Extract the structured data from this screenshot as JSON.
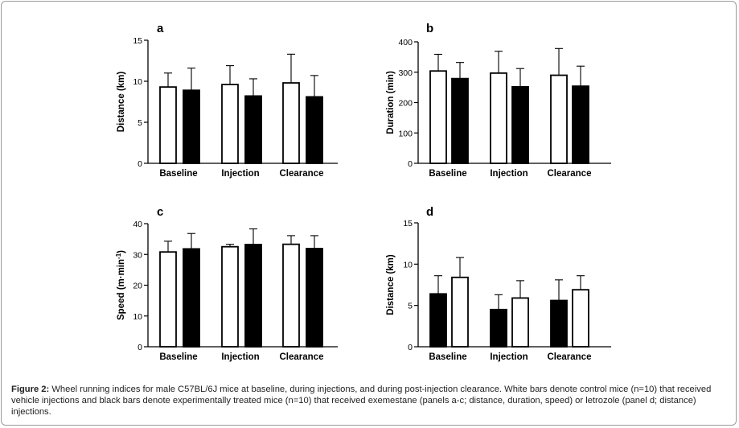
{
  "chart_data": [
    {
      "panel": "a",
      "type": "bar",
      "categories": [
        "Baseline",
        "Injection",
        "Clearance"
      ],
      "ylabel": "Distance (km)",
      "ylim": [
        0,
        15
      ],
      "yticks": [
        0,
        5,
        10,
        15
      ],
      "series": [
        {
          "fill": "white",
          "values": [
            9.3,
            9.6,
            9.8
          ],
          "errors": [
            1.7,
            2.3,
            3.5
          ]
        },
        {
          "fill": "black",
          "values": [
            8.9,
            8.2,
            8.1
          ],
          "errors": [
            2.7,
            2.1,
            2.6
          ]
        }
      ]
    },
    {
      "panel": "b",
      "type": "bar",
      "categories": [
        "Baseline",
        "Injection",
        "Clearance"
      ],
      "ylabel": "Duration (min)",
      "ylim": [
        0,
        400
      ],
      "yticks": [
        0,
        100,
        200,
        300,
        400
      ],
      "series": [
        {
          "fill": "white",
          "values": [
            304,
            297,
            290
          ],
          "errors": [
            55,
            72,
            88
          ]
        },
        {
          "fill": "black",
          "values": [
            279,
            252,
            254
          ],
          "errors": [
            53,
            60,
            66
          ]
        }
      ]
    },
    {
      "panel": "c",
      "type": "bar",
      "categories": [
        "Baseline",
        "Injection",
        "Clearance"
      ],
      "ylabel": "Speed (m·min",
      "ylabel_sup": "-1",
      "ylabel_end": ")",
      "ylim": [
        0,
        40
      ],
      "yticks": [
        0,
        10,
        20,
        30,
        40
      ],
      "series": [
        {
          "fill": "white",
          "values": [
            30.8,
            32.5,
            33.3
          ],
          "errors": [
            3.5,
            0.8,
            2.8
          ]
        },
        {
          "fill": "black",
          "values": [
            31.8,
            33.2,
            31.9
          ],
          "errors": [
            5.0,
            5.1,
            4.2
          ]
        }
      ]
    },
    {
      "panel": "d",
      "type": "bar",
      "categories": [
        "Baseline",
        "Injection",
        "Clearance"
      ],
      "ylabel": "Distance (km)",
      "ylim": [
        0,
        15
      ],
      "yticks": [
        0,
        5,
        10,
        15
      ],
      "series": [
        {
          "fill": "black",
          "values": [
            6.4,
            4.5,
            5.6
          ],
          "errors": [
            2.2,
            1.8,
            2.5
          ]
        },
        {
          "fill": "white",
          "values": [
            8.4,
            5.9,
            6.9
          ],
          "errors": [
            2.4,
            2.1,
            1.7
          ]
        }
      ]
    }
  ],
  "caption": {
    "label": "Figure 2:",
    "text": " Wheel running indices for male C57BL/6J mice at baseline, during injections, and during post-injection clearance. White bars denote control mice (n=10) that received vehicle injections and black bars denote experimentally treated mice (n=10) that received exemestane (panels a-c; distance, duration, speed) or letrozole (panel d; distance) injections."
  }
}
